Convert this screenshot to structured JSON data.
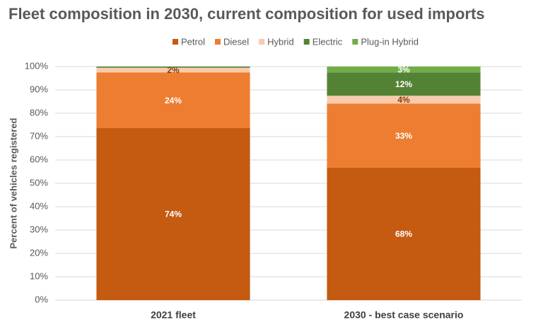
{
  "chart_data": {
    "type": "bar",
    "stacked": "percent",
    "title": "Fleet composition in 2030, current composition for used imports",
    "y_label": "Percent of vehicles registered",
    "categories": [
      "2021 fleet",
      "2030 - best case scenario"
    ],
    "series": [
      {
        "name": "Petrol",
        "color": "#c55a11",
        "label_color": "#ffffff",
        "values": [
          74,
          68
        ],
        "value_labels": [
          "74%",
          "68%"
        ]
      },
      {
        "name": "Diesel",
        "color": "#ed7d31",
        "label_color": "#ffffff",
        "values": [
          24,
          33
        ],
        "value_labels": [
          "24%",
          "33%"
        ]
      },
      {
        "name": "Hybrid",
        "color": "#f8cbad",
        "label_color": "#843c0c",
        "values": [
          2,
          4
        ],
        "value_labels": [
          "2%",
          "4%"
        ]
      },
      {
        "name": "Electric",
        "color": "#548235",
        "label_color": "#ffffff",
        "values": [
          0.5,
          12
        ],
        "value_labels": [
          null,
          "12%"
        ]
      },
      {
        "name": "Plug-in Hybrid",
        "color": "#70ad47",
        "label_color": "#ffffff",
        "values": [
          0,
          3
        ],
        "value_labels": [
          null,
          "3%"
        ]
      }
    ],
    "ylim": [
      0,
      100
    ],
    "yticks": [
      {
        "value": 0,
        "label": "0%"
      },
      {
        "value": 10,
        "label": "10%"
      },
      {
        "value": 20,
        "label": "20%"
      },
      {
        "value": 30,
        "label": "30%"
      },
      {
        "value": 40,
        "label": "40%"
      },
      {
        "value": 50,
        "label": "50%"
      },
      {
        "value": 60,
        "label": "60%"
      },
      {
        "value": 70,
        "label": "70%"
      },
      {
        "value": 80,
        "label": "80%"
      },
      {
        "value": 90,
        "label": "90%"
      },
      {
        "value": 100,
        "label": "100%"
      }
    ],
    "grid": true,
    "legend": "top"
  }
}
